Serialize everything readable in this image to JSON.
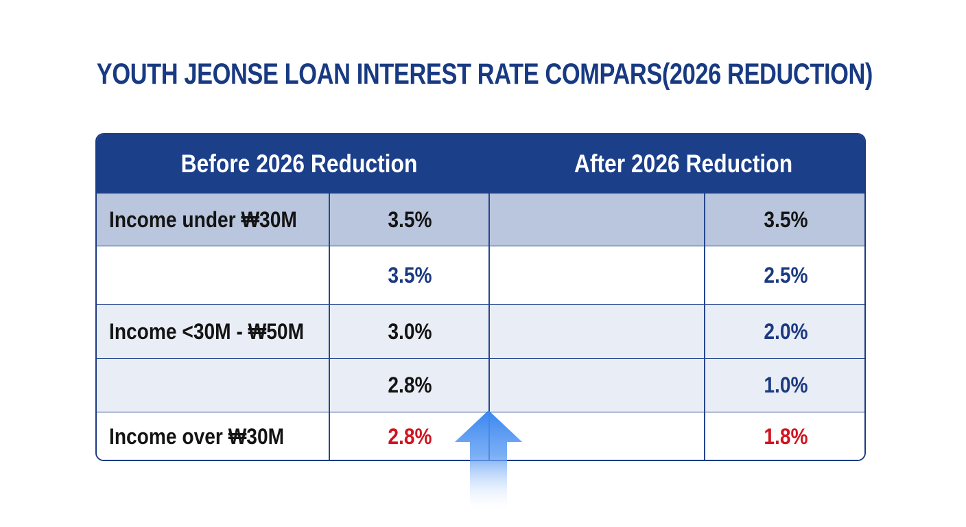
{
  "title": "YOUTH JEONSE LOAN INTEREST RATE COMPARS(2026 REDUCTION)",
  "colors": {
    "title": "#183a82",
    "header_bg": "#1c3f8a",
    "border": "#26478e",
    "highlight_row": "#b9c6dd",
    "shaded_row": "#e9edf5",
    "white_row": "#ffffff",
    "text_dark": "#141414",
    "text_blue": "#1b3a82",
    "text_red": "#d0141f",
    "arrow": "#3a86f0"
  },
  "chart_data": {
    "type": "table",
    "title": "YOUTH JEONSE LOAN INTEREST RATE COMPARS(2026 REDUCTION)",
    "columns": [
      "Before 2026 Reduction",
      "After 2026 Reduction"
    ],
    "rows": [
      {
        "label": "Income under ₩30M",
        "before": "3.5%",
        "after": "3.5%",
        "before_color": "text_dark",
        "after_color": "text_dark",
        "fill": "highlight_row"
      },
      {
        "label": "",
        "before": "3.5%",
        "after": "2.5%",
        "before_color": "text_blue",
        "after_color": "text_blue",
        "fill": "white_row"
      },
      {
        "label": "Income <30M - ₩50M",
        "before": "3.0%",
        "after": "2.0%",
        "before_color": "text_dark",
        "after_color": "text_blue",
        "fill": "shaded_row"
      },
      {
        "label": "",
        "before": "2.8%",
        "after": "1.0%",
        "before_color": "text_dark",
        "after_color": "text_blue",
        "fill": "shaded_row"
      },
      {
        "label": "Income over ₩30M",
        "before": "2.8%",
        "after": "1.8%",
        "before_color": "text_red",
        "after_color": "text_red",
        "fill": "white_row"
      }
    ],
    "annotations": [
      "up-arrow"
    ]
  }
}
